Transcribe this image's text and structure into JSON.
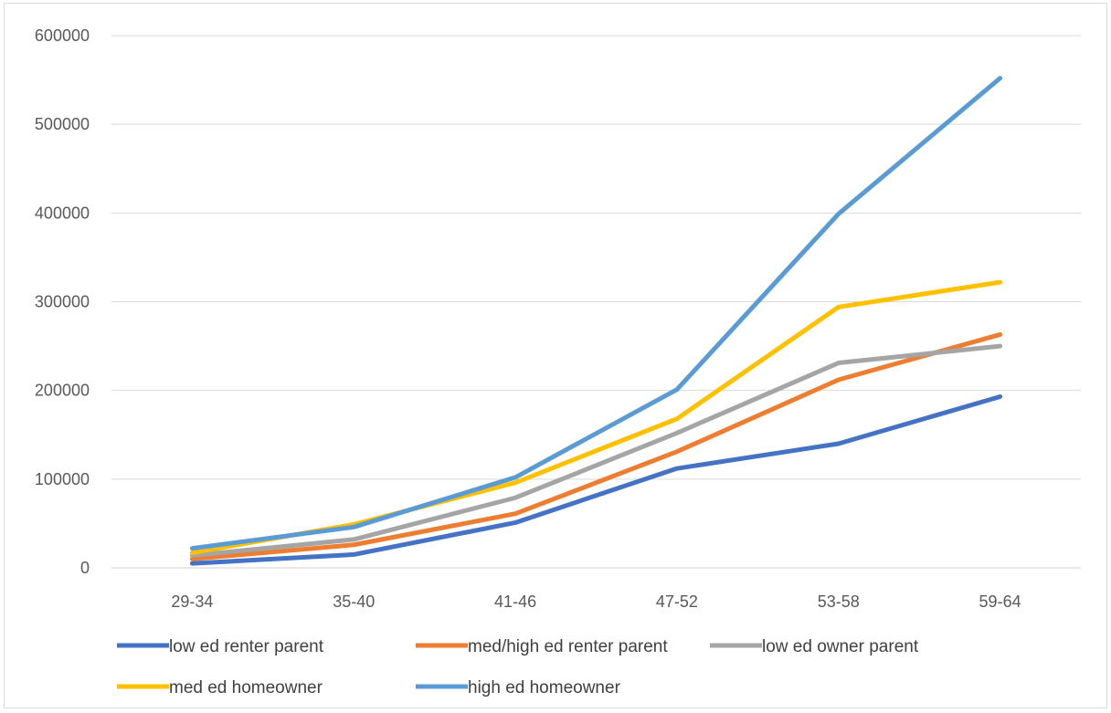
{
  "chart_data": {
    "type": "line",
    "title": "",
    "xlabel": "",
    "ylabel": "",
    "categories": [
      "29-34",
      "35-40",
      "41-46",
      "47-52",
      "53-58",
      "59-64"
    ],
    "ylim": [
      0,
      600000
    ],
    "yticks": [
      0,
      100000,
      200000,
      300000,
      400000,
      500000,
      600000
    ],
    "grid": true,
    "legend_position": "bottom",
    "series": [
      {
        "name": "low ed renter parent",
        "color": "#4472C4",
        "values": [
          5000,
          15000,
          51000,
          112000,
          140000,
          193000
        ]
      },
      {
        "name": "med/high ed renter parent",
        "color": "#ED7D31",
        "values": [
          10000,
          26000,
          61000,
          131000,
          212000,
          263000
        ]
      },
      {
        "name": "low ed owner parent",
        "color": "#A5A5A5",
        "values": [
          14000,
          32000,
          79000,
          152000,
          231000,
          250000
        ]
      },
      {
        "name": "med ed homeowner",
        "color": "#FFC000",
        "values": [
          17000,
          49000,
          96000,
          168000,
          294000,
          322000
        ]
      },
      {
        "name": "high ed homeowner",
        "color": "#5B9BD5",
        "values": [
          22000,
          46000,
          102000,
          201000,
          399000,
          552000
        ]
      }
    ]
  }
}
